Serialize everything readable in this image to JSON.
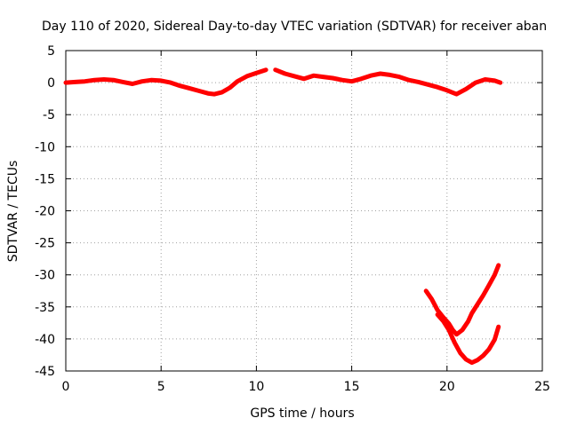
{
  "chart_data": {
    "type": "line",
    "title": "Day 110 of 2020, Sidereal Day-to-day VTEC variation (SDTVAR) for receiver aban",
    "xlabel": "GPS time / hours",
    "ylabel": "SDTVAR / TECUs",
    "xlim": [
      0,
      25
    ],
    "ylim": [
      -45,
      5
    ],
    "xticks": [
      0,
      5,
      10,
      15,
      20,
      25
    ],
    "yticks": [
      5,
      0,
      -5,
      -10,
      -15,
      -20,
      -25,
      -30,
      -35,
      -40,
      -45
    ],
    "grid": true,
    "colors": {
      "series": "#ff0000",
      "grid": "#a0a0a0",
      "axis": "#000000"
    },
    "series": [
      {
        "name": "main-trace-a",
        "x": [
          0.0,
          0.5,
          1.0,
          1.5,
          2.0,
          2.5,
          3.0,
          3.5,
          4.0,
          4.5,
          5.0,
          5.5,
          6.0,
          6.5,
          7.0,
          7.5,
          7.8,
          8.2,
          8.6,
          9.0,
          9.5,
          10.0,
          10.5
        ],
        "values": [
          0.0,
          0.1,
          0.2,
          0.4,
          0.5,
          0.4,
          0.1,
          -0.2,
          0.2,
          0.4,
          0.3,
          0.0,
          -0.5,
          -0.9,
          -1.3,
          -1.7,
          -1.8,
          -1.5,
          -0.8,
          0.2,
          1.0,
          1.5,
          2.0
        ]
      },
      {
        "name": "main-trace-b",
        "x": [
          11.0,
          11.5,
          12.0,
          12.5,
          13.0,
          13.5,
          14.0,
          14.5,
          15.0,
          15.5,
          16.0,
          16.5,
          17.0,
          17.5,
          18.0,
          18.5,
          19.0,
          19.5,
          20.0,
          20.5,
          21.0,
          21.5,
          22.0,
          22.5,
          22.8
        ],
        "values": [
          2.0,
          1.4,
          1.0,
          0.6,
          1.1,
          0.9,
          0.7,
          0.4,
          0.2,
          0.6,
          1.1,
          1.4,
          1.2,
          0.9,
          0.4,
          0.1,
          -0.3,
          -0.7,
          -1.2,
          -1.8,
          -1.0,
          0.0,
          0.5,
          0.3,
          0.0
        ]
      },
      {
        "name": "lower-trace-a",
        "x": [
          18.9,
          19.2,
          19.5,
          19.8,
          20.1,
          20.3,
          20.5,
          20.8,
          21.1,
          21.3,
          21.6,
          21.9,
          22.2,
          22.5,
          22.7
        ],
        "values": [
          -32.5,
          -33.8,
          -35.5,
          -36.6,
          -37.6,
          -38.6,
          -39.3,
          -38.6,
          -37.3,
          -36.0,
          -34.6,
          -33.2,
          -31.6,
          -30.0,
          -28.5
        ]
      },
      {
        "name": "lower-trace-b",
        "x": [
          19.5,
          19.8,
          20.1,
          20.4,
          20.7,
          21.0,
          21.3,
          21.6,
          21.9,
          22.2,
          22.5,
          22.7
        ],
        "values": [
          -36.2,
          -37.2,
          -38.6,
          -40.6,
          -42.2,
          -43.2,
          -43.7,
          -43.3,
          -42.6,
          -41.6,
          -40.1,
          -38.1
        ]
      }
    ]
  }
}
